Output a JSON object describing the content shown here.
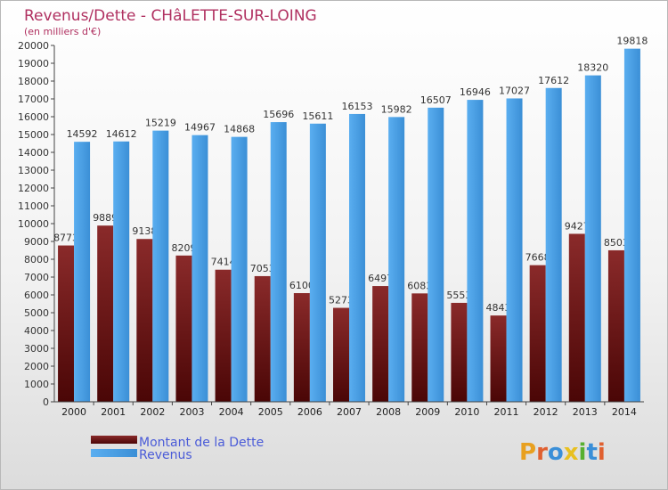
{
  "chart_data": {
    "type": "bar",
    "title": "Revenus/Dette - CHâLETTE-SUR-LOING",
    "subtitle": "(en milliers d'€)",
    "categories": [
      "2000",
      "2001",
      "2002",
      "2003",
      "2004",
      "2005",
      "2006",
      "2007",
      "2008",
      "2009",
      "2010",
      "2011",
      "2012",
      "2013",
      "2014"
    ],
    "series": [
      {
        "name": "Montant de la Dette",
        "color": "#7a1b1b",
        "values": [
          8773,
          9889,
          9138,
          8209,
          7414,
          7053,
          6100,
          5273,
          6497,
          6083,
          5553,
          4843,
          7668,
          9427,
          8503
        ],
        "labels": [
          "8773",
          "9889",
          "9138",
          "8209",
          "7414",
          "7053",
          "6100",
          "5273",
          "6497",
          "6083",
          "5553",
          "4843",
          "7668",
          "9427",
          "8503"
        ]
      },
      {
        "name": "Revenus",
        "color": "#4a9fe6",
        "values": [
          14592,
          14612,
          15219,
          14967,
          14868,
          15696,
          15611,
          16153,
          15982,
          16507,
          16946,
          17027,
          17612,
          18320,
          19818
        ],
        "labels": [
          "14592",
          "14612",
          "15219",
          "14967",
          "14868",
          "15696",
          "15611",
          "16153",
          "15982",
          "16507",
          "16946",
          "17027",
          "17612",
          "18320",
          "19818"
        ]
      }
    ],
    "ylim": [
      0,
      20000
    ],
    "yticks": [
      0,
      1000,
      2000,
      3000,
      4000,
      5000,
      6000,
      7000,
      8000,
      9000,
      10000,
      11000,
      12000,
      13000,
      14000,
      15000,
      16000,
      17000,
      18000,
      19000,
      20000
    ],
    "grid": false,
    "legend_position": "bottom-left"
  },
  "brand": {
    "text": "Proxiti",
    "letter_colors": [
      "#e8a020",
      "#e06030",
      "#3a8fd8",
      "#e8c020",
      "#58b030",
      "#3a8fd8",
      "#e06030"
    ]
  }
}
